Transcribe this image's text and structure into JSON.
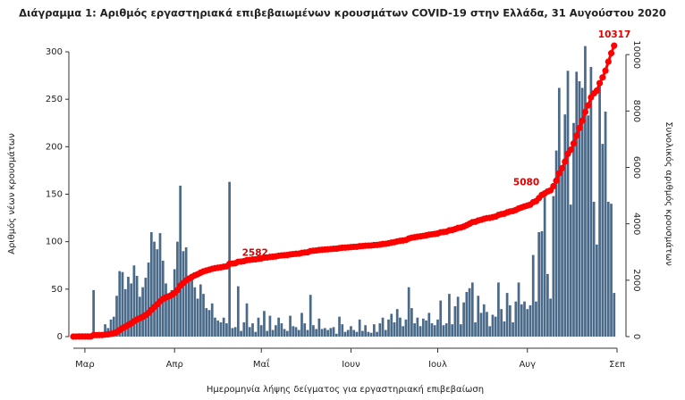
{
  "chart_data": {
    "type": "bar",
    "title": "Διάγραμμα 1: Αριθμός εργαστηριακά επιβεβαιωμένων κρουσμάτων COVID-19 στην Ελλάδα, 31 Αυγούστου 2020",
    "xlabel": "Ημερομηνία λήψης δείγματος για εργαστηριακή επιβεβαίωση",
    "ylabel": "Αριθμός νέων κρουσμάτων",
    "y2label": "Συνολικός αριθμός κρουσμάτων",
    "categories": [
      null,
      null,
      null,
      null,
      "Μαρ",
      null,
      null,
      null,
      null,
      null,
      null,
      null,
      null,
      null,
      null,
      null,
      null,
      null,
      null,
      null,
      null,
      null,
      null,
      null,
      null,
      null,
      null,
      null,
      null,
      null,
      null,
      null,
      null,
      null,
      null,
      "Απρ",
      null,
      null,
      null,
      null,
      null,
      null,
      null,
      null,
      null,
      null,
      null,
      null,
      null,
      null,
      null,
      null,
      null,
      null,
      null,
      null,
      null,
      null,
      null,
      null,
      null,
      null,
      null,
      null,
      null,
      "Μαΐ",
      null,
      null,
      null,
      null,
      null,
      null,
      null,
      null,
      null,
      null,
      null,
      null,
      null,
      null,
      null,
      null,
      null,
      null,
      null,
      null,
      null,
      null,
      null,
      null,
      null,
      null,
      null,
      null,
      null,
      null,
      "Ιουν",
      null,
      null,
      null,
      null,
      null,
      null,
      null,
      null,
      null,
      null,
      null,
      null,
      null,
      null,
      null,
      null,
      null,
      null,
      null,
      null,
      null,
      null,
      null,
      null,
      null,
      null,
      null,
      null,
      null,
      "Ιουλ",
      null,
      null,
      null,
      null,
      null,
      null,
      null,
      null,
      null,
      null,
      null,
      null,
      null,
      null,
      null,
      null,
      null,
      null,
      null,
      null,
      null,
      null,
      null,
      null,
      null,
      null,
      null,
      null,
      null,
      null,
      "Αυγ",
      null,
      null,
      null,
      null,
      null,
      null,
      null,
      null,
      null,
      null,
      null,
      null,
      null,
      null,
      null,
      null,
      null,
      null,
      null,
      null,
      null,
      null,
      null,
      null,
      null,
      null,
      null,
      null,
      null,
      null,
      "Σεπ"
    ],
    "series": [
      {
        "color": "#4a6a89",
        "values": [
          1,
          1,
          1,
          0,
          0,
          0,
          0,
          49,
          1,
          2,
          3,
          13,
          9,
          18,
          21,
          43,
          69,
          68,
          50,
          63,
          56,
          75,
          64,
          42,
          52,
          62,
          78,
          110,
          100,
          92,
          109,
          80,
          56,
          41,
          49,
          71,
          100,
          159,
          90,
          94,
          63,
          65,
          52,
          40,
          55,
          45,
          30,
          28,
          35,
          20,
          17,
          15,
          20,
          14,
          163,
          9,
          10,
          53,
          6,
          15,
          35,
          10,
          14,
          5,
          20,
          12,
          27,
          6,
          22,
          7,
          12,
          20,
          14,
          8,
          6,
          22,
          11,
          10,
          7,
          25,
          14,
          7,
          44,
          12,
          8,
          19,
          8,
          9,
          7,
          9,
          10,
          3,
          21,
          13,
          5,
          7,
          11,
          7,
          5,
          18,
          6,
          12,
          5,
          4,
          13,
          5,
          14,
          20,
          7,
          18,
          24,
          15,
          29,
          20,
          11,
          18,
          52,
          30,
          14,
          20,
          11,
          19,
          17,
          25,
          14,
          12,
          18,
          38,
          12,
          14,
          45,
          13,
          32,
          42,
          13,
          36,
          47,
          51,
          57,
          15,
          43,
          25,
          34,
          26,
          11,
          23,
          21,
          57,
          29,
          16,
          46,
          33,
          15,
          37,
          57,
          34,
          37,
          29,
          33,
          86,
          37,
          110,
          111,
          153,
          66,
          40,
          148,
          196,
          262,
          180,
          234,
          280,
          139,
          225,
          279,
          269,
          262,
          306,
          233,
          284,
          142,
          97,
          266,
          203,
          237,
          142,
          140,
          46,
          null
        ]
      },
      {
        "type": "line",
        "axis": "y2",
        "color": "#ff0000",
        "values": [
          1,
          2,
          3,
          3,
          3,
          3,
          3,
          52,
          53,
          55,
          58,
          71,
          80,
          98,
          119,
          162,
          231,
          299,
          349,
          412,
          468,
          543,
          607,
          649,
          701,
          763,
          841,
          951,
          1051,
          1143,
          1252,
          1332,
          1388,
          1429,
          1478,
          1549,
          1649,
          1808,
          1898,
          1992,
          2055,
          2120,
          2172,
          2212,
          2267,
          2312,
          2342,
          2370,
          2405,
          2425,
          2442,
          2457,
          2477,
          2491,
          2582,
          2591,
          2601,
          2654,
          2660,
          2675,
          2710,
          2720,
          2734,
          2739,
          2759,
          2771,
          2798,
          2804,
          2826,
          2833,
          2845,
          2865,
          2879,
          2887,
          2893,
          2915,
          2926,
          2936,
          2943,
          2968,
          2982,
          2989,
          3033,
          3045,
          3053,
          3072,
          3080,
          3089,
          3096,
          3105,
          3115,
          3118,
          3139,
          3152,
          3157,
          3164,
          3175,
          3182,
          3187,
          3205,
          3211,
          3223,
          3228,
          3232,
          3245,
          3250,
          3264,
          3284,
          3291,
          3309,
          3333,
          3348,
          3377,
          3397,
          3408,
          3426,
          3478,
          3508,
          3522,
          3542,
          3553,
          3572,
          3589,
          3614,
          3628,
          3640,
          3658,
          3696,
          3708,
          3722,
          3767,
          3780,
          3812,
          3854,
          3867,
          3903,
          3950,
          4001,
          4058,
          4073,
          4116,
          4141,
          4175,
          4201,
          4212,
          4235,
          4256,
          4313,
          4342,
          4358,
          4404,
          4437,
          4452,
          4489,
          4546,
          4580,
          4617,
          4646,
          4679,
          4765,
          4802,
          4912,
          5023,
          5080,
          5146,
          5186,
          5334,
          5530,
          5792,
          5972,
          6206,
          6486,
          6625,
          6850,
          7129,
          7398,
          7660,
          7966,
          8199,
          8483,
          8625,
          8722,
          8988,
          9191,
          9428,
          9750,
          10050,
          10317,
          null
        ],
        "value_labels": [
          null,
          null,
          null,
          null,
          null,
          null,
          null,
          null,
          null,
          null,
          null,
          null,
          null,
          null,
          null,
          null,
          null,
          null,
          null,
          null,
          null,
          null,
          null,
          null,
          null,
          null,
          null,
          null,
          null,
          null,
          null,
          null,
          null,
          null,
          null,
          null,
          null,
          null,
          null,
          null,
          null,
          null,
          null,
          null,
          null,
          null,
          null,
          null,
          null,
          null,
          null,
          null,
          null,
          null,
          "2582",
          null,
          null,
          null,
          null,
          null,
          null,
          null,
          null,
          null,
          null,
          null,
          null,
          null,
          null,
          null,
          null,
          null,
          null,
          null,
          null,
          null,
          null,
          null,
          null,
          null,
          null,
          null,
          null,
          null,
          null,
          null,
          null,
          null,
          null,
          null,
          null,
          null,
          null,
          null,
          null,
          null,
          null,
          null,
          null,
          null,
          null,
          null,
          null,
          null,
          null,
          null,
          null,
          null,
          null,
          null,
          null,
          null,
          null,
          null,
          null,
          null,
          null,
          null,
          null,
          null,
          null,
          null,
          null,
          null,
          null,
          null,
          null,
          null,
          null,
          null,
          null,
          null,
          null,
          null,
          null,
          null,
          null,
          null,
          null,
          null,
          null,
          null,
          null,
          null,
          null,
          null,
          null,
          null,
          null,
          null,
          null,
          null,
          null,
          null,
          null,
          null,
          null,
          null,
          null,
          null,
          null,
          null,
          null,
          "5080",
          null,
          null,
          null,
          null,
          null,
          null,
          null,
          null,
          null,
          null,
          null,
          null,
          null,
          null,
          null,
          null,
          null,
          null,
          null,
          null,
          null,
          null,
          null,
          "10317",
          null
        ]
      }
    ],
    "ylim": [
      0,
      300
    ],
    "yticks": [
      0,
      50,
      100,
      150,
      200,
      250,
      300
    ],
    "y2lim": [
      0,
      10100
    ],
    "y2ticks": [
      0,
      2000,
      4000,
      6000,
      8000,
      10000
    ]
  }
}
